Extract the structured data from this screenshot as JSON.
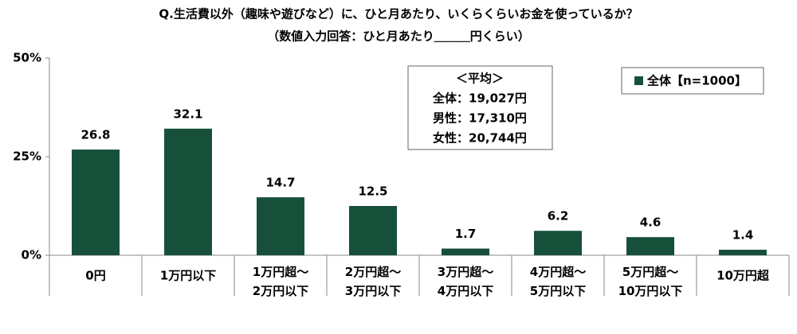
{
  "chart_data": {
    "type": "bar",
    "title": "Q.生活費以外（趣味や遊びなど）に、ひと月あたり、いくらくらいお金を使っているか？",
    "subtitle": "（数値入力回答：ひと月あたり＿＿＿円くらい）",
    "categories": [
      "0円",
      "1万円以下",
      "1万円超～\n2万円以下",
      "2万円超～\n3万円以下",
      "3万円超～\n4万円以下",
      "4万円超～\n5万円以下",
      "5万円超～\n10万円以下",
      "10万円超"
    ],
    "series": [
      {
        "name": "全体【n=1000】",
        "color": "#17503a",
        "values": [
          26.8,
          32.1,
          14.7,
          12.5,
          1.7,
          6.2,
          4.6,
          1.4
        ]
      }
    ],
    "ylim": [
      0,
      50
    ],
    "yticks": [
      {
        "value": 0,
        "label": "0%"
      },
      {
        "value": 25,
        "label": "25%"
      },
      {
        "value": 50,
        "label": "50%"
      }
    ],
    "annotation": [
      "＜平均＞",
      "全体：19,027円",
      "男性：17,310円",
      "女性：20,744円"
    ],
    "legend_position": "top-right"
  }
}
